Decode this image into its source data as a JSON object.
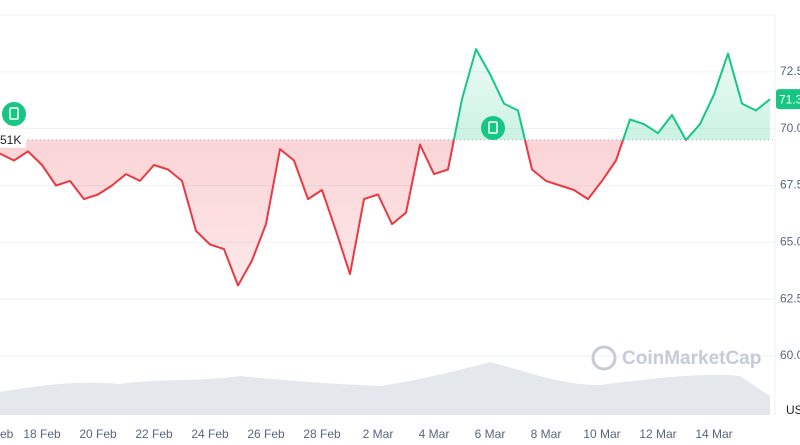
{
  "chart_data": {
    "type": "baseline-line",
    "categories": [
      "eb",
      null,
      null,
      "18 Feb",
      null,
      null,
      null,
      "20 Feb",
      null,
      null,
      null,
      "22 Feb",
      null,
      null,
      null,
      "24 Feb",
      null,
      null,
      null,
      "26 Feb",
      null,
      null,
      null,
      "28 Feb",
      null,
      null,
      null,
      "2 Mar",
      null,
      null,
      null,
      "4 Mar",
      null,
      null,
      null,
      "6 Mar",
      null,
      null,
      null,
      "8 Mar",
      null,
      null,
      null,
      "10 Mar",
      null,
      null,
      null,
      "12 Mar",
      null,
      null,
      null,
      "14 Mar",
      null,
      null,
      null,
      null
    ],
    "values": [
      68.9,
      68.6,
      69.0,
      68.4,
      67.5,
      67.7,
      66.9,
      67.1,
      67.5,
      68.0,
      67.7,
      68.4,
      68.2,
      67.7,
      65.5,
      64.9,
      64.7,
      63.1,
      64.2,
      65.8,
      69.1,
      68.6,
      66.9,
      67.3,
      65.5,
      63.6,
      66.9,
      67.1,
      65.8,
      66.3,
      69.3,
      68.0,
      68.2,
      71.3,
      73.5,
      72.4,
      71.1,
      70.8,
      68.2,
      67.7,
      67.5,
      67.3,
      66.9,
      67.7,
      68.6,
      70.4,
      70.2,
      69.8,
      70.6,
      69.5,
      70.2,
      71.5,
      73.3,
      71.1,
      70.8,
      71.3
    ],
    "up_color": "#16c784",
    "down_color": "#ea3943",
    "baseline": {
      "value": 69.51,
      "label": "51K"
    },
    "current_price": 71.3,
    "ylim": [
      57.4,
      75.0
    ],
    "yticks": [
      72.5,
      {
        "value": 70,
        "label": "70.0"
      },
      67.5,
      {
        "value": 65,
        "label": "65.0"
      },
      62.5,
      {
        "value": 60,
        "label": "60.0"
      }
    ],
    "grid": true,
    "currency": "US",
    "watermark": "CoinMarketCap"
  }
}
